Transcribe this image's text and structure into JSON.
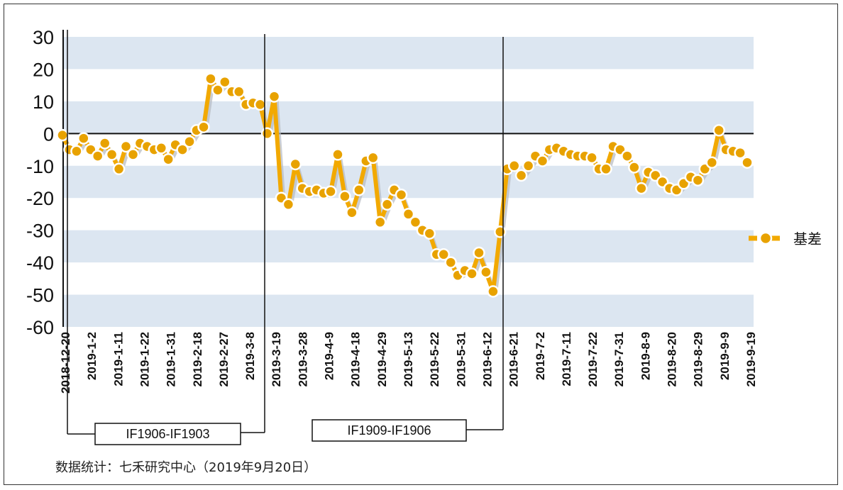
{
  "chart_data": {
    "type": "line",
    "ylim": [
      -60,
      30
    ],
    "yticks": [
      30,
      20,
      10,
      0,
      -10,
      -20,
      -30,
      -40,
      -50,
      -60
    ],
    "x_tick_labels": [
      "2018-12-20",
      "2019-1-2",
      "2019-1-11",
      "2019-1-22",
      "2019-1-31",
      "2019-2-18",
      "2019-2-27",
      "2019-3-8",
      "2019-3-19",
      "2019-3-28",
      "2019-4-9",
      "2019-4-18",
      "2019-4-29",
      "2019-5-13",
      "2019-5-22",
      "2019-5-31",
      "2019-6-12",
      "2019-6-21",
      "2019-7-2",
      "2019-7-11",
      "2019-7-22",
      "2019-7-31",
      "2019-8-9",
      "2019-8-20",
      "2019-8-29",
      "2019-9-9",
      "2019-9-19"
    ],
    "series": [
      {
        "name": "基差",
        "color": "#F2A900",
        "values": [
          -0.5,
          -5,
          -5.5,
          -1.5,
          -5,
          -7,
          -3,
          -6.5,
          -11,
          -4,
          -6.5,
          -3,
          -4,
          -5,
          -4.5,
          -8,
          -3.5,
          -5,
          -2.5,
          1,
          2,
          17,
          13.5,
          16,
          13,
          13,
          9,
          9.5,
          9,
          0,
          11.5,
          -20,
          -22,
          -9.5,
          -17,
          -18,
          -17.5,
          -18.5,
          -18,
          -6.5,
          -19.5,
          -24.5,
          -17.5,
          -8.5,
          -7.5,
          -27.5,
          -22,
          -17.5,
          -19,
          -25,
          -27.5,
          -30,
          -31,
          -37.5,
          -37.5,
          -40,
          -44,
          -42.5,
          -43.5,
          -37,
          -43,
          -49,
          -30.5,
          -11,
          -10,
          -13,
          -10,
          -7,
          -8.5,
          -5,
          -4.5,
          -5.5,
          -6.5,
          -7,
          -7,
          -7.5,
          -11,
          -11,
          -4,
          -5,
          -7,
          -10.5,
          -17,
          -12,
          -13,
          -15,
          -17,
          -17.5,
          -15.5,
          -13.5,
          -14.5,
          -11,
          -9,
          1,
          -5,
          -5.5,
          -6,
          -9
        ]
      }
    ],
    "contract_periods": [
      {
        "label": "IF1906-IF1903"
      },
      {
        "label": "IF1909-IF1906"
      }
    ]
  },
  "legend": {
    "label": "基差"
  },
  "source_note": "数据统计：七禾研究中心（2019年9月20日）"
}
